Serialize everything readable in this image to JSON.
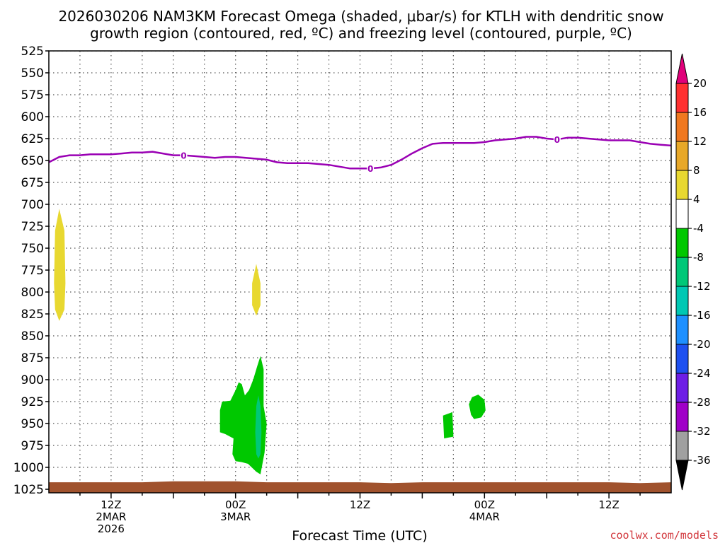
{
  "title_line1": "2026030206 NAM3KM Forecast Omega (shaded, μbar/s) for KTLH with dendritic snow",
  "title_line2": "growth region (contoured, red, ºC) and freezing level (contoured, purple, ºC)",
  "credit": "coolwx.com/models",
  "chart_data": {
    "type": "heatmap",
    "xlabel": "Forecast Time (UTC)",
    "ylabel": "",
    "x_units": "forecast hours from 2026-03-02 06Z",
    "xlim": [
      0,
      60
    ],
    "ylim": [
      525,
      1025
    ],
    "y_inverted": true,
    "y_ticks": [
      525,
      550,
      575,
      600,
      625,
      650,
      675,
      700,
      725,
      750,
      775,
      800,
      825,
      850,
      875,
      900,
      925,
      950,
      975,
      1000,
      1025
    ],
    "x_ticks": [
      {
        "hour": 6,
        "lines": [
          "12Z",
          "2MAR",
          "2026"
        ]
      },
      {
        "hour": 18,
        "lines": [
          "00Z",
          "3MAR"
        ]
      },
      {
        "hour": 30,
        "lines": [
          "12Z"
        ]
      },
      {
        "hour": 42,
        "lines": [
          "00Z",
          "4MAR"
        ]
      },
      {
        "hour": 54,
        "lines": [
          "12Z"
        ]
      }
    ],
    "grid": true,
    "colorbar": {
      "levels": [
        20,
        16,
        12,
        8,
        4,
        -4,
        -8,
        -12,
        -16,
        -20,
        -24,
        -28,
        -32,
        -36
      ],
      "colors": [
        "#e0007a",
        "#ff3030",
        "#f07820",
        "#e8a828",
        "#e8d830",
        "#ffffff",
        "#00c800",
        "#00c878",
        "#00c8b4",
        "#1e90ff",
        "#1e50f0",
        "#6e1ee6",
        "#a000c8",
        "#a0a0a0",
        "#000000"
      ]
    },
    "freezing_level": {
      "label": "0",
      "color": "#9a00b4",
      "hours": [
        0,
        1,
        2,
        3,
        4,
        5,
        6,
        7,
        8,
        9,
        10,
        11,
        12,
        13,
        14,
        15,
        16,
        17,
        18,
        19,
        20,
        21,
        22,
        23,
        24,
        25,
        26,
        27,
        28,
        29,
        30,
        31,
        32,
        33,
        34,
        35,
        36,
        37,
        38,
        39,
        40,
        41,
        42,
        43,
        44,
        45,
        46,
        47,
        48,
        49,
        50,
        51,
        52,
        53,
        54,
        55,
        56,
        57,
        58,
        59,
        60
      ],
      "pressure": [
        652,
        646,
        644,
        644,
        643,
        643,
        643,
        642,
        641,
        641,
        640,
        642,
        644,
        644,
        645,
        646,
        647,
        646,
        646,
        647,
        648,
        649,
        652,
        653,
        653,
        653,
        654,
        655,
        657,
        659,
        659,
        659,
        658,
        655,
        649,
        642,
        636,
        631,
        630,
        630,
        630,
        630,
        629,
        627,
        626,
        625,
        623,
        623,
        625,
        626,
        624,
        624,
        625,
        626,
        627,
        627,
        627,
        629,
        631,
        632,
        633
      ],
      "label_hours": [
        13,
        31,
        49
      ]
    },
    "omega_features": [
      {
        "value": 6,
        "category": "4 to 8",
        "center_hour": 1,
        "polygon": [
          [
            1,
            705
          ],
          [
            1.5,
            730
          ],
          [
            1.6,
            790
          ],
          [
            1.5,
            820
          ],
          [
            1,
            833
          ],
          [
            0.6,
            820
          ],
          [
            0.5,
            790
          ],
          [
            0.6,
            730
          ]
        ]
      },
      {
        "value": 6,
        "category": "4 to 8",
        "center_hour": 20,
        "polygon": [
          [
            20,
            768
          ],
          [
            20.4,
            790
          ],
          [
            20.4,
            815
          ],
          [
            20,
            827
          ],
          [
            19.6,
            815
          ],
          [
            19.6,
            790
          ]
        ]
      },
      {
        "value": -6,
        "category": "-4 to -8",
        "center_hour": 19.2,
        "polygon": [
          [
            16.5,
            935
          ],
          [
            16.7,
            925
          ],
          [
            17.5,
            924
          ],
          [
            18,
            912
          ],
          [
            18.3,
            903
          ],
          [
            18.6,
            905
          ],
          [
            18.9,
            918
          ],
          [
            19.3,
            912
          ],
          [
            19.7,
            900
          ],
          [
            20.1,
            884
          ],
          [
            20.4,
            873
          ],
          [
            20.7,
            888
          ],
          [
            20.7,
            930
          ],
          [
            21,
            950
          ],
          [
            20.8,
            983
          ],
          [
            20.4,
            1008
          ],
          [
            20,
            1005
          ],
          [
            19.2,
            996
          ],
          [
            18.6,
            994
          ],
          [
            18,
            993
          ],
          [
            17.7,
            985
          ],
          [
            17.8,
            967
          ],
          [
            17,
            962
          ],
          [
            16.5,
            960
          ]
        ]
      },
      {
        "value": -10,
        "category": "-8 to -12",
        "center_hour": 20.2,
        "polygon": [
          [
            20.2,
            918
          ],
          [
            20.4,
            930
          ],
          [
            20.5,
            960
          ],
          [
            20.4,
            985
          ],
          [
            20.2,
            990
          ],
          [
            20,
            985
          ],
          [
            19.9,
            960
          ],
          [
            20,
            930
          ]
        ]
      },
      {
        "value": -6,
        "category": "-4 to -8",
        "center_hour": 38.5,
        "polygon": [
          [
            38.0,
            941
          ],
          [
            38.9,
            937
          ],
          [
            39.0,
            965
          ],
          [
            38.1,
            967
          ]
        ]
      },
      {
        "value": -6,
        "category": "-4 to -8",
        "center_hour": 41,
        "polygon": [
          [
            40.8,
            920
          ],
          [
            41.4,
            917
          ],
          [
            42.0,
            923
          ],
          [
            42.1,
            935
          ],
          [
            41.7,
            943
          ],
          [
            41.0,
            945
          ],
          [
            40.7,
            940
          ],
          [
            40.5,
            928
          ]
        ]
      }
    ],
    "ground": {
      "color": "#a0522d",
      "hours": [
        0,
        3,
        6,
        9,
        12,
        15,
        18,
        21,
        24,
        27,
        30,
        33,
        36,
        39,
        42,
        45,
        48,
        51,
        54,
        57,
        60
      ],
      "pressure": [
        1017,
        1017,
        1017,
        1017,
        1016,
        1016,
        1016,
        1017,
        1017,
        1017,
        1017,
        1018,
        1017,
        1017,
        1017,
        1017,
        1017,
        1017,
        1017,
        1018,
        1017
      ]
    }
  }
}
